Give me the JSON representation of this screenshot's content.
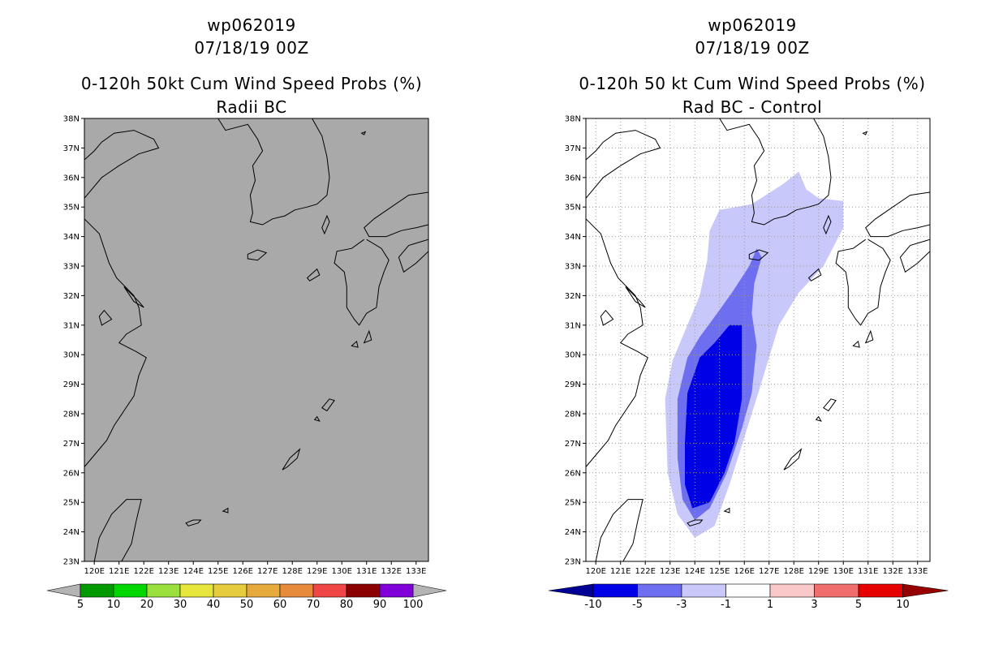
{
  "left": {
    "storm": "wp062019",
    "date": "07/18/19 00Z",
    "title": "0-120h 50kt Cum Wind Speed Probs (%)",
    "subtitle": "Radii BC",
    "colorbar_labels": [
      "5",
      "10",
      "20",
      "30",
      "40",
      "50",
      "60",
      "70",
      "80",
      "90",
      "100"
    ],
    "colors": {
      "map_fill": "#a9a9a9",
      "bins": [
        "#009a00",
        "#00d600",
        "#9ae03c",
        "#e6e63c",
        "#e6cc3c",
        "#e6aa3c",
        "#e68a3c",
        "#f04646",
        "#8c0000",
        "#7f00d9"
      ],
      "ends": "#b4b4b4"
    }
  },
  "right": {
    "storm": "wp062019",
    "date": "07/18/19 00Z",
    "title": "0-120h 50 kt Cum Wind Speed Probs (%)",
    "subtitle": "Rad BC - Control",
    "colorbar_labels": [
      "-10",
      "-5",
      "-3",
      "-1",
      "1",
      "3",
      "5",
      "10"
    ],
    "colors": {
      "bins": [
        "#000096",
        "#0000e6",
        "#6e6ef0",
        "#c8c8fa",
        "#ffffff",
        "#fac8c8",
        "#f06e6e",
        "#e60000",
        "#960000"
      ],
      "light": "#c8c8fa",
      "medium": "#6e6ef0",
      "dark": "#0000e6"
    }
  },
  "chart_data": [
    {
      "type": "heatmap",
      "panel": "left",
      "title": "0-120h 50kt Cum Wind Speed Probs (%)",
      "subtitle": "Radii BC",
      "x_ticks": [
        "120E",
        "121E",
        "122E",
        "123E",
        "124E",
        "125E",
        "126E",
        "127E",
        "128E",
        "129E",
        "130E",
        "131E",
        "132E",
        "133E"
      ],
      "y_ticks": [
        "23N",
        "24N",
        "25N",
        "26N",
        "27N",
        "28N",
        "29N",
        "30N",
        "31N",
        "32N",
        "33N",
        "34N",
        "35N",
        "36N",
        "37N",
        "38N"
      ],
      "xlim": [
        119.6,
        133.5
      ],
      "ylim": [
        23,
        38
      ],
      "grid": false,
      "values": "no probability contours shown (field below 5%)",
      "colorbar": [
        5,
        10,
        20,
        30,
        40,
        50,
        60,
        70,
        80,
        90,
        100
      ]
    },
    {
      "type": "heatmap",
      "panel": "right",
      "title": "0-120h 50 kt Cum Wind Speed Probs (%)",
      "subtitle": "Rad BC - Control",
      "x_ticks": [
        "120E",
        "121E",
        "122E",
        "123E",
        "124E",
        "125E",
        "126E",
        "127E",
        "128E",
        "129E",
        "130E",
        "131E",
        "132E",
        "133E"
      ],
      "y_ticks": [
        "23N",
        "24N",
        "25N",
        "26N",
        "27N",
        "28N",
        "29N",
        "30N",
        "31N",
        "32N",
        "33N",
        "34N",
        "35N",
        "36N",
        "37N",
        "38N"
      ],
      "xlim": [
        119.6,
        133.5
      ],
      "ylim": [
        23,
        38
      ],
      "grid": true,
      "colorbar": [
        -10,
        -5,
        -3,
        -1,
        1,
        3,
        5,
        10
      ],
      "contours": [
        {
          "level": "-1 to -3",
          "lonlat": [
            [
              124.0,
              23.8
            ],
            [
              123.3,
              24.6
            ],
            [
              122.9,
              26.0
            ],
            [
              122.8,
              28.5
            ],
            [
              123.1,
              29.8
            ],
            [
              123.6,
              30.8
            ],
            [
              124.2,
              32.0
            ],
            [
              124.5,
              33.2
            ],
            [
              124.6,
              34.2
            ],
            [
              125.0,
              34.9
            ],
            [
              126.3,
              35.1
            ],
            [
              127.6,
              35.8
            ],
            [
              128.2,
              36.2
            ],
            [
              128.5,
              35.6
            ],
            [
              129.0,
              35.3
            ],
            [
              130.0,
              35.2
            ],
            [
              130.0,
              34.3
            ],
            [
              129.2,
              33.0
            ],
            [
              128.2,
              32.1
            ],
            [
              127.4,
              31.0
            ],
            [
              126.6,
              28.8
            ],
            [
              126.0,
              27.2
            ],
            [
              125.4,
              25.6
            ],
            [
              124.8,
              24.2
            ]
          ]
        },
        {
          "level": "-3 to -5",
          "lonlat": [
            [
              124.0,
              24.4
            ],
            [
              123.5,
              25.1
            ],
            [
              123.3,
              26.5
            ],
            [
              123.3,
              28.5
            ],
            [
              123.7,
              29.9
            ],
            [
              124.2,
              30.6
            ],
            [
              124.9,
              31.4
            ],
            [
              125.5,
              32.1
            ],
            [
              126.2,
              33.0
            ],
            [
              126.5,
              33.6
            ],
            [
              126.7,
              33.3
            ],
            [
              126.4,
              32.4
            ],
            [
              126.3,
              31.4
            ],
            [
              126.5,
              30.3
            ],
            [
              126.3,
              28.7
            ],
            [
              125.9,
              27.5
            ],
            [
              125.3,
              26.0
            ],
            [
              124.6,
              24.8
            ]
          ]
        },
        {
          "level": "-5 to -10",
          "lonlat": [
            [
              123.9,
              24.8
            ],
            [
              123.6,
              25.6
            ],
            [
              123.6,
              27.0
            ],
            [
              123.7,
              28.7
            ],
            [
              124.2,
              29.9
            ],
            [
              124.8,
              30.4
            ],
            [
              125.4,
              31.0
            ],
            [
              125.9,
              31.0
            ],
            [
              125.9,
              29.6
            ],
            [
              125.9,
              28.5
            ],
            [
              125.6,
              27.0
            ],
            [
              125.2,
              26.0
            ],
            [
              124.6,
              25.0
            ]
          ]
        }
      ]
    }
  ]
}
